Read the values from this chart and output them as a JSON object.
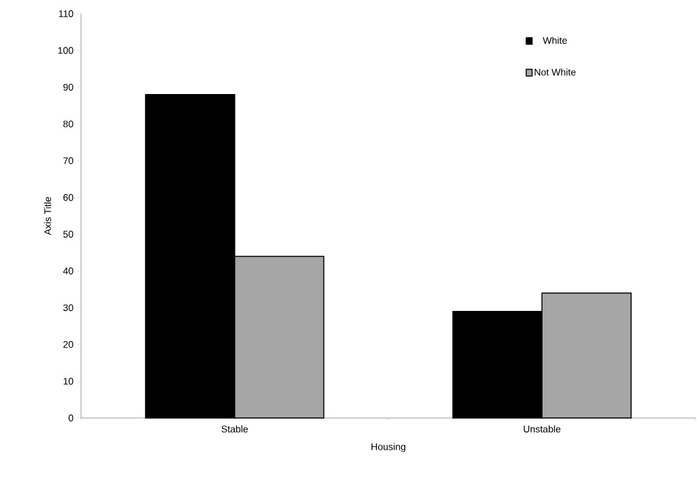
{
  "chart_data": {
    "type": "bar",
    "xlabel": "Housing",
    "ylabel": "Axis Title",
    "categories": [
      "Stable",
      "Unstable"
    ],
    "series": [
      {
        "name": "White",
        "color": "#000000",
        "values": [
          88,
          29
        ]
      },
      {
        "name": "Not White",
        "color": "#a6a6a6",
        "values": [
          44,
          34
        ]
      }
    ],
    "ylim": [
      0,
      110
    ],
    "yticks": [
      0,
      10,
      20,
      30,
      40,
      50,
      60,
      70,
      80,
      90,
      100,
      110
    ],
    "legend": "top right",
    "grid": false
  }
}
